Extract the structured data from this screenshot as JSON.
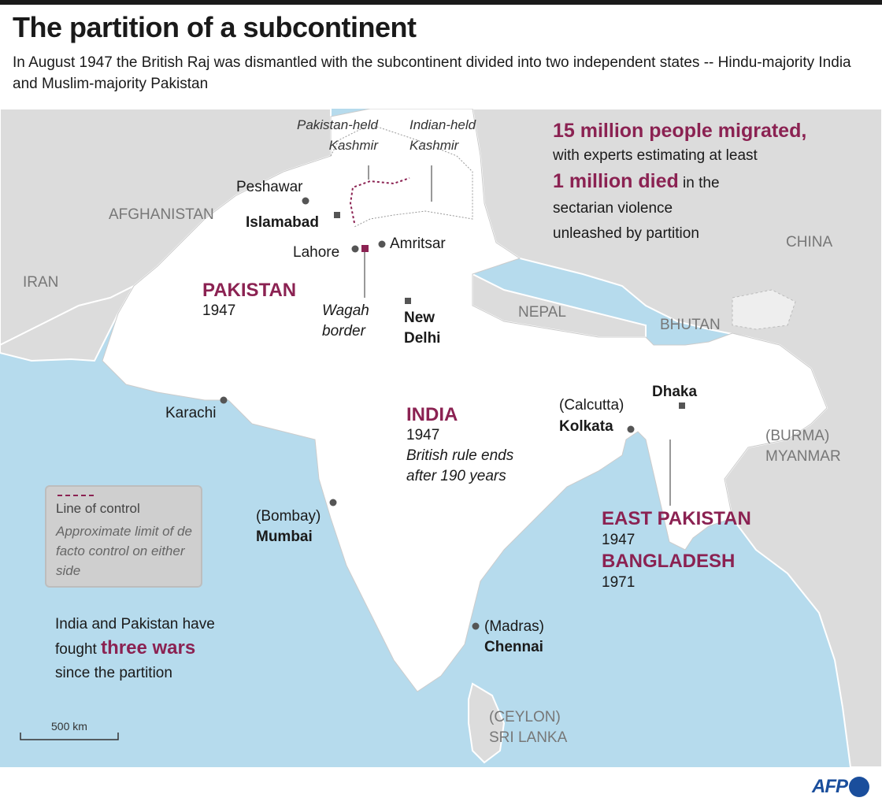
{
  "header": {
    "title": "The partition of a subcontinent",
    "subtitle": "In August 1947 the British Raj was dismantled with the subcontinent divided into two independent states -- Hindu-majority India and Muslim-majority Pakistan"
  },
  "colors": {
    "accent": "#8b2252",
    "sea": "#b6dbed",
    "land_other": "#dcdcdc",
    "land_main": "#ffffff",
    "brand": "#1a4e9c"
  },
  "countries": {
    "afghanistan": "AFGHANISTAN",
    "iran": "IRAN",
    "china": "CHINA",
    "nepal": "NEPAL",
    "bhutan": "BHUTAN",
    "burma": "(BURMA)",
    "myanmar": "MYANMAR",
    "ceylon": "(CEYLON)",
    "sri_lanka": "SRI LANKA"
  },
  "kashmir": {
    "pakistan_held_1": "Pakistan-held",
    "pakistan_held_2": "Kashmir",
    "indian_held_1": "Indian-held",
    "indian_held_2": "Kashmir"
  },
  "cities": {
    "peshawar": "Peshawar",
    "islamabad": "Islamabad",
    "lahore": "Lahore",
    "amritsar": "Amritsar",
    "wagah_1": "Wagah",
    "wagah_2": "border",
    "new_delhi_1": "New",
    "new_delhi_2": "Delhi",
    "karachi": "Karachi",
    "calcutta": "(Calcutta)",
    "kolkata": "Kolkata",
    "dhaka": "Dhaka",
    "bombay": "(Bombay)",
    "mumbai": "Mumbai",
    "madras": "(Madras)",
    "chennai": "Chennai"
  },
  "states": {
    "pakistan": "PAKISTAN",
    "pakistan_year": "1947",
    "india": "INDIA",
    "india_year": "1947",
    "india_note_1": "British rule ends",
    "india_note_2": "after 190 years",
    "east_pakistan": "EAST PAKISTAN",
    "east_pakistan_year": "1947",
    "bangladesh": "BANGLADESH",
    "bangladesh_year": "1971"
  },
  "stats": {
    "migrated": "15 million people migrated,",
    "line2": "with experts estimating at least",
    "died": "1 million died",
    "line3_rest": " in the",
    "line4": "sectarian violence",
    "line5": "unleashed by partition"
  },
  "legend": {
    "title": "Line of control",
    "description": "Approximate limit of de facto control on either side"
  },
  "wars": {
    "line1": "India and Pakistan have",
    "line2_pre": "fought ",
    "highlight": "three wars",
    "line3": "since the partition"
  },
  "scale": {
    "label": "500 km"
  },
  "credit": {
    "logo": "AFP"
  }
}
